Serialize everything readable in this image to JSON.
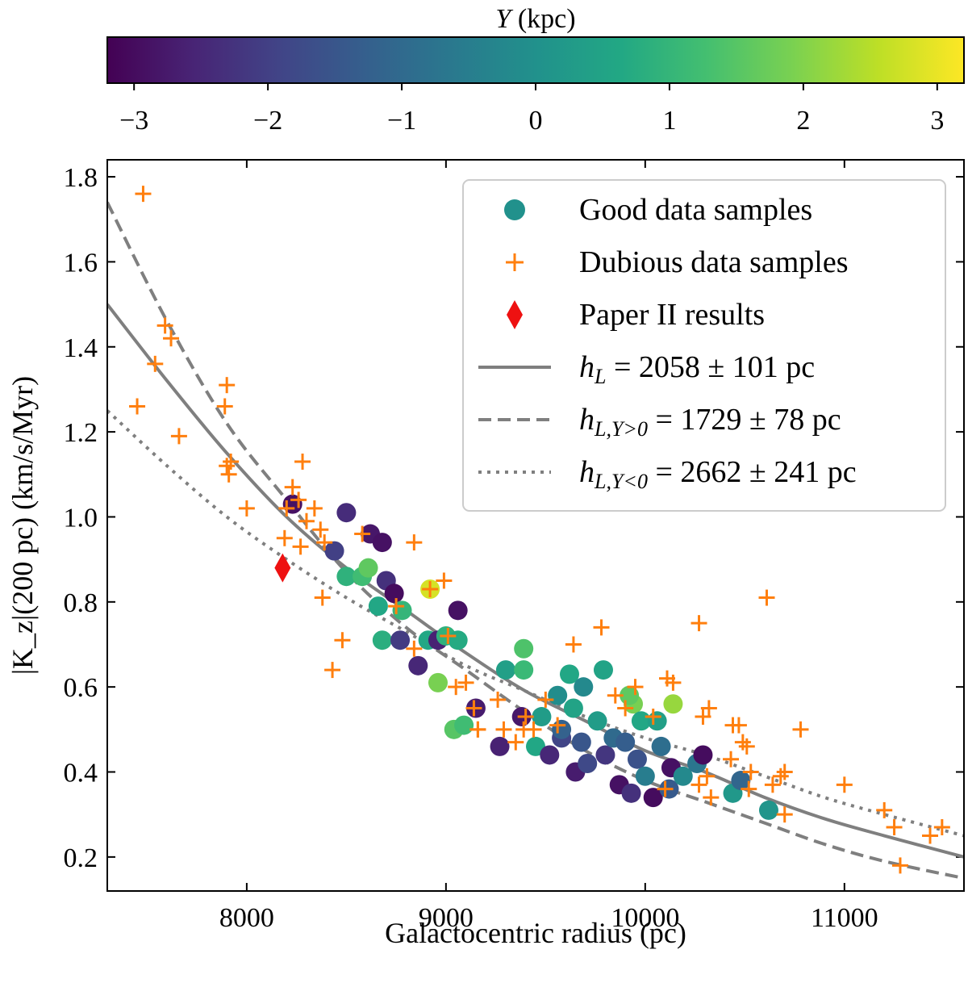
{
  "chart_data": {
    "type": "scatter",
    "xlabel": "Galactocentric radius (pc)",
    "ylabel": "|K_z|(200 pc) (km/s/Myr)",
    "xlim": [
      7300,
      11600
    ],
    "ylim": [
      0.12,
      1.84
    ],
    "x_ticks": [
      8000,
      9000,
      10000,
      11000
    ],
    "x_tick_labels": [
      "8000",
      "9000",
      "10000",
      "11000"
    ],
    "y_ticks": [
      0.2,
      0.4,
      0.6,
      0.8,
      1.0,
      1.2,
      1.4,
      1.6,
      1.8
    ],
    "y_tick_labels": [
      "0.2",
      "0.4",
      "0.6",
      "0.8",
      "1.0",
      "1.2",
      "1.4",
      "1.6",
      "1.8"
    ],
    "colorbar": {
      "label_var": "Y",
      "label_unit": " (kpc)",
      "range": [
        -3.2,
        3.2
      ],
      "ticks": [
        -3,
        -2,
        -1,
        0,
        1,
        2,
        3
      ],
      "tick_labels": [
        "−3",
        "−2",
        "−1",
        "0",
        "1",
        "2",
        "3"
      ],
      "colormap": "viridis"
    },
    "legend": {
      "placement": "top-right",
      "good_label": "Good data samples",
      "dubious_label": "Dubious data samples",
      "paper_label": "Paper II results",
      "fit_all": {
        "var": "h",
        "sub": "L",
        "rest": " = 2058 ± 101 pc"
      },
      "fit_ypos": {
        "var": "h",
        "sub": "L,Y>0",
        "rest": " = 1729 ± 78 pc"
      },
      "fit_yneg": {
        "var": "h",
        "sub": "L,Y<0",
        "rest": " = 2662 ± 241 pc"
      }
    },
    "fits": [
      {
        "name": "all",
        "style": "solid",
        "x": [
          7300,
          7600,
          7900,
          8200,
          8500,
          8800,
          9100,
          9400,
          9700,
          10000,
          10300,
          10600,
          10900,
          11200,
          11600
        ],
        "y": [
          1.5,
          1.32,
          1.15,
          1.0,
          0.88,
          0.78,
          0.68,
          0.59,
          0.52,
          0.45,
          0.4,
          0.34,
          0.29,
          0.25,
          0.2
        ]
      },
      {
        "name": "Y>0",
        "style": "dashed",
        "x": [
          7300,
          7600,
          7900,
          8200,
          8500,
          8800,
          9100,
          9400,
          9700,
          10000,
          10300,
          10600,
          10900,
          11200,
          11600
        ],
        "y": [
          1.74,
          1.46,
          1.22,
          1.04,
          0.87,
          0.74,
          0.64,
          0.54,
          0.45,
          0.38,
          0.33,
          0.28,
          0.23,
          0.19,
          0.15
        ]
      },
      {
        "name": "Y<0",
        "style": "dotted",
        "x": [
          7300,
          7600,
          7900,
          8200,
          8500,
          8800,
          9100,
          9400,
          9700,
          10000,
          10300,
          10600,
          10900,
          11200,
          11600
        ],
        "y": [
          1.25,
          1.12,
          1.0,
          0.9,
          0.81,
          0.73,
          0.65,
          0.59,
          0.53,
          0.48,
          0.44,
          0.39,
          0.34,
          0.3,
          0.25
        ]
      }
    ],
    "paper_ii": {
      "x": 8180,
      "y": 0.88,
      "color": "#ee1111"
    },
    "good_samples": [
      {
        "x": 8230,
        "y": 1.03,
        "c": -2.9
      },
      {
        "x": 8440,
        "y": 0.92,
        "c": -2.0
      },
      {
        "x": 8500,
        "y": 1.01,
        "c": -2.4
      },
      {
        "x": 8620,
        "y": 0.96,
        "c": -2.8
      },
      {
        "x": 8680,
        "y": 0.94,
        "c": -2.9
      },
      {
        "x": 8700,
        "y": 0.85,
        "c": -2.3
      },
      {
        "x": 8740,
        "y": 0.82,
        "c": -3.0
      },
      {
        "x": 8500,
        "y": 0.86,
        "c": 0.9
      },
      {
        "x": 8580,
        "y": 0.86,
        "c": 1.2
      },
      {
        "x": 8610,
        "y": 0.88,
        "c": 1.6
      },
      {
        "x": 8660,
        "y": 0.79,
        "c": 0.6
      },
      {
        "x": 8780,
        "y": 0.78,
        "c": 1.0
      },
      {
        "x": 8680,
        "y": 0.71,
        "c": 0.8
      },
      {
        "x": 8770,
        "y": 0.71,
        "c": -2.1
      },
      {
        "x": 8860,
        "y": 0.65,
        "c": -2.5
      },
      {
        "x": 8910,
        "y": 0.71,
        "c": 0.6
      },
      {
        "x": 8920,
        "y": 0.83,
        "c": 2.8
      },
      {
        "x": 8960,
        "y": 0.71,
        "c": -2.6
      },
      {
        "x": 9000,
        "y": 0.72,
        "c": 0.9
      },
      {
        "x": 9060,
        "y": 0.78,
        "c": -2.9
      },
      {
        "x": 9060,
        "y": 0.71,
        "c": 0.7
      },
      {
        "x": 8960,
        "y": 0.61,
        "c": 1.9
      },
      {
        "x": 9040,
        "y": 0.5,
        "c": 1.5
      },
      {
        "x": 9090,
        "y": 0.51,
        "c": 1.2
      },
      {
        "x": 9150,
        "y": 0.55,
        "c": -2.7
      },
      {
        "x": 9270,
        "y": 0.46,
        "c": -2.6
      },
      {
        "x": 9300,
        "y": 0.64,
        "c": 0.4
      },
      {
        "x": 9380,
        "y": 0.53,
        "c": -2.8
      },
      {
        "x": 9390,
        "y": 0.69,
        "c": 1.4
      },
      {
        "x": 9390,
        "y": 0.64,
        "c": 1.1
      },
      {
        "x": 9450,
        "y": 0.46,
        "c": 0.6
      },
      {
        "x": 9480,
        "y": 0.53,
        "c": 0.3
      },
      {
        "x": 9520,
        "y": 0.44,
        "c": -2.5
      },
      {
        "x": 9560,
        "y": 0.58,
        "c": -0.1
      },
      {
        "x": 9580,
        "y": 0.48,
        "c": -1.9
      },
      {
        "x": 9620,
        "y": 0.63,
        "c": 0.6
      },
      {
        "x": 9640,
        "y": 0.55,
        "c": 0.5
      },
      {
        "x": 9650,
        "y": 0.4,
        "c": -2.7
      },
      {
        "x": 9680,
        "y": 0.47,
        "c": -1.5
      },
      {
        "x": 9690,
        "y": 0.6,
        "c": -0.2
      },
      {
        "x": 9710,
        "y": 0.42,
        "c": -1.8
      },
      {
        "x": 9760,
        "y": 0.52,
        "c": 0.3
      },
      {
        "x": 9790,
        "y": 0.64,
        "c": 0.5
      },
      {
        "x": 9800,
        "y": 0.44,
        "c": -2.2
      },
      {
        "x": 9840,
        "y": 0.48,
        "c": -1.0
      },
      {
        "x": 9870,
        "y": 0.37,
        "c": -2.9
      },
      {
        "x": 9900,
        "y": 0.47,
        "c": -1.3
      },
      {
        "x": 9930,
        "y": 0.35,
        "c": -2.3
      },
      {
        "x": 9940,
        "y": 0.56,
        "c": 1.9
      },
      {
        "x": 9960,
        "y": 0.43,
        "c": -1.6
      },
      {
        "x": 9980,
        "y": 0.52,
        "c": 0.6
      },
      {
        "x": 10000,
        "y": 0.39,
        "c": -0.5
      },
      {
        "x": 10040,
        "y": 0.34,
        "c": -3.0
      },
      {
        "x": 10060,
        "y": 0.52,
        "c": 0.4
      },
      {
        "x": 10080,
        "y": 0.46,
        "c": -0.9
      },
      {
        "x": 10120,
        "y": 0.36,
        "c": -1.4
      },
      {
        "x": 10130,
        "y": 0.41,
        "c": -2.9
      },
      {
        "x": 10140,
        "y": 0.56,
        "c": 2.2
      },
      {
        "x": 10190,
        "y": 0.39,
        "c": -0.2
      },
      {
        "x": 10260,
        "y": 0.42,
        "c": -0.7
      },
      {
        "x": 10290,
        "y": 0.44,
        "c": -3.0
      },
      {
        "x": 10440,
        "y": 0.35,
        "c": 0.2
      },
      {
        "x": 10480,
        "y": 0.38,
        "c": -1.1
      },
      {
        "x": 10620,
        "y": 0.31,
        "c": 0.1
      },
      {
        "x": 9920,
        "y": 0.58,
        "c": 1.6
      },
      {
        "x": 9580,
        "y": 0.5,
        "c": -1.2
      }
    ],
    "dubious_samples": [
      {
        "x": 7480,
        "y": 1.76
      },
      {
        "x": 7450,
        "y": 1.26
      },
      {
        "x": 7540,
        "y": 1.36
      },
      {
        "x": 7590,
        "y": 1.45
      },
      {
        "x": 7620,
        "y": 1.42
      },
      {
        "x": 7660,
        "y": 1.19
      },
      {
        "x": 7900,
        "y": 1.31
      },
      {
        "x": 7890,
        "y": 1.26
      },
      {
        "x": 7900,
        "y": 1.12
      },
      {
        "x": 7920,
        "y": 1.13
      },
      {
        "x": 7910,
        "y": 1.1
      },
      {
        "x": 8000,
        "y": 1.02
      },
      {
        "x": 8200,
        "y": 1.02
      },
      {
        "x": 8230,
        "y": 1.07
      },
      {
        "x": 8260,
        "y": 1.04
      },
      {
        "x": 8280,
        "y": 1.13
      },
      {
        "x": 8300,
        "y": 0.99
      },
      {
        "x": 8340,
        "y": 1.02
      },
      {
        "x": 8370,
        "y": 0.97
      },
      {
        "x": 8390,
        "y": 0.94
      },
      {
        "x": 8190,
        "y": 0.95
      },
      {
        "x": 8270,
        "y": 0.93
      },
      {
        "x": 8380,
        "y": 0.81
      },
      {
        "x": 8430,
        "y": 0.64
      },
      {
        "x": 8480,
        "y": 0.71
      },
      {
        "x": 8580,
        "y": 0.96
      },
      {
        "x": 8750,
        "y": 0.79
      },
      {
        "x": 8840,
        "y": 0.94
      },
      {
        "x": 8840,
        "y": 0.69
      },
      {
        "x": 8920,
        "y": 0.83
      },
      {
        "x": 8990,
        "y": 0.85
      },
      {
        "x": 9010,
        "y": 0.72
      },
      {
        "x": 9050,
        "y": 0.6
      },
      {
        "x": 9100,
        "y": 0.61
      },
      {
        "x": 9140,
        "y": 0.55
      },
      {
        "x": 9160,
        "y": 0.5
      },
      {
        "x": 9260,
        "y": 0.57
      },
      {
        "x": 9290,
        "y": 0.5
      },
      {
        "x": 9390,
        "y": 0.5
      },
      {
        "x": 9400,
        "y": 0.53
      },
      {
        "x": 9440,
        "y": 0.5
      },
      {
        "x": 9500,
        "y": 0.57
      },
      {
        "x": 9560,
        "y": 0.51
      },
      {
        "x": 9640,
        "y": 0.7
      },
      {
        "x": 9780,
        "y": 0.74
      },
      {
        "x": 9850,
        "y": 0.58
      },
      {
        "x": 9900,
        "y": 0.55
      },
      {
        "x": 9950,
        "y": 0.6
      },
      {
        "x": 10040,
        "y": 0.53
      },
      {
        "x": 10100,
        "y": 0.36
      },
      {
        "x": 10110,
        "y": 0.62
      },
      {
        "x": 10140,
        "y": 0.61
      },
      {
        "x": 10270,
        "y": 0.75
      },
      {
        "x": 10290,
        "y": 0.53
      },
      {
        "x": 10320,
        "y": 0.55
      },
      {
        "x": 10310,
        "y": 0.39
      },
      {
        "x": 10330,
        "y": 0.34
      },
      {
        "x": 10430,
        "y": 0.43
      },
      {
        "x": 10440,
        "y": 0.51
      },
      {
        "x": 10470,
        "y": 0.51
      },
      {
        "x": 10490,
        "y": 0.47
      },
      {
        "x": 10510,
        "y": 0.46
      },
      {
        "x": 10530,
        "y": 0.4
      },
      {
        "x": 10520,
        "y": 0.36
      },
      {
        "x": 10610,
        "y": 0.81
      },
      {
        "x": 10640,
        "y": 0.37
      },
      {
        "x": 10680,
        "y": 0.39
      },
      {
        "x": 10700,
        "y": 0.4
      },
      {
        "x": 10700,
        "y": 0.3
      },
      {
        "x": 10780,
        "y": 0.5
      },
      {
        "x": 11000,
        "y": 0.37
      },
      {
        "x": 11200,
        "y": 0.31
      },
      {
        "x": 11250,
        "y": 0.27
      },
      {
        "x": 11280,
        "y": 0.18
      },
      {
        "x": 11430,
        "y": 0.25
      },
      {
        "x": 11490,
        "y": 0.27
      },
      {
        "x": 10270,
        "y": 0.37
      },
      {
        "x": 9160,
        "y": 0.5
      },
      {
        "x": 9350,
        "y": 0.47
      }
    ]
  }
}
